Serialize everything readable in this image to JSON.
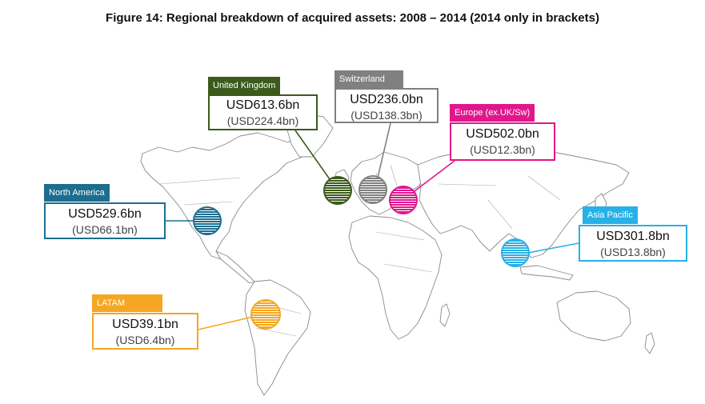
{
  "title": "Figure 14: Regional breakdown of acquired assets: 2008 – 2014 (2014 only in brackets)",
  "regions": [
    {
      "name": "United Kingdom",
      "total": "USD613.6bn",
      "y2014": "(USD224.4bn)",
      "color": "#3b5a1b"
    },
    {
      "name": "Switzerland",
      "total": "USD236.0bn",
      "y2014": "(USD138.3bn)",
      "color": "#808080"
    },
    {
      "name": "Europe (ex.UK/Sw)",
      "total": "USD502.0bn",
      "y2014": "(USD12.3bn)",
      "color": "#e0178c"
    },
    {
      "name": "North America",
      "total": "USD529.6bn",
      "y2014": "(USD66.1bn)",
      "color": "#1d6d8f"
    },
    {
      "name": "Asia Pacific",
      "total": "USD301.8bn",
      "y2014": "(USD13.8bn)",
      "color": "#27b1e6"
    },
    {
      "name": "LATAM",
      "total": "USD39.1bn",
      "y2014": "(USD6.4bn)",
      "color": "#f5a623"
    }
  ]
}
